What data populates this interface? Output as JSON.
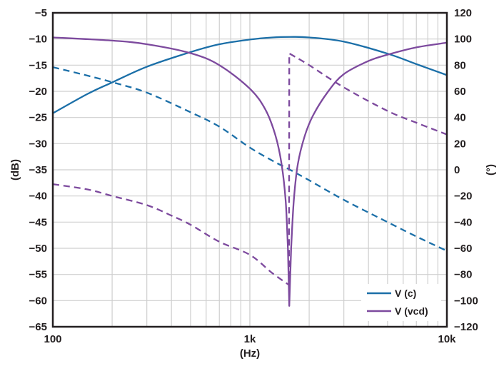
{
  "chart_data": {
    "type": "line",
    "xlabel": "(Hz)",
    "ylabel_left": "(dB)",
    "ylabel_right": "(°)",
    "xscale": "log",
    "xlim": [
      100,
      10000
    ],
    "ylim_left": [
      -65,
      -5
    ],
    "ylim_right": [
      -120,
      120
    ],
    "x_tick_labels": [
      "100",
      "1k",
      "10k"
    ],
    "x_tick_values": [
      100,
      1000,
      10000
    ],
    "y_left_ticks": [
      -5,
      -10,
      -15,
      -20,
      -25,
      -30,
      -35,
      -40,
      -45,
      -50,
      -55,
      -60,
      -65
    ],
    "y_right_ticks": [
      120,
      100,
      80,
      60,
      40,
      20,
      0,
      -20,
      -40,
      -60,
      -80,
      -100,
      -120
    ],
    "grid": true,
    "legend_placement": "bottom-right",
    "legend": [
      {
        "name": "V (c)",
        "color": "#1b6fa8"
      },
      {
        "name": "V (vcd)",
        "color": "#7d4a9e"
      }
    ],
    "series": [
      {
        "name": "V (c)",
        "quantity": "magnitude",
        "axis": "left",
        "style": "solid",
        "color": "#1b6fa8",
        "points": [
          [
            100,
            -24.2
          ],
          [
            150,
            -20.5
          ],
          [
            200,
            -18.3
          ],
          [
            300,
            -15.3
          ],
          [
            500,
            -12.5
          ],
          [
            700,
            -11
          ],
          [
            1000,
            -10.1
          ],
          [
            1300,
            -9.7
          ],
          [
            1600,
            -9.6
          ],
          [
            2000,
            -9.7
          ],
          [
            3000,
            -10.5
          ],
          [
            5000,
            -12.8
          ],
          [
            7000,
            -14.8
          ],
          [
            10000,
            -16.9
          ]
        ]
      },
      {
        "name": "V (c)",
        "quantity": "phase",
        "axis": "right",
        "style": "dashed",
        "color": "#1b6fa8",
        "points": [
          [
            100,
            78.5
          ],
          [
            150,
            72
          ],
          [
            200,
            67
          ],
          [
            300,
            59
          ],
          [
            500,
            44
          ],
          [
            700,
            33
          ],
          [
            1000,
            17
          ],
          [
            1300,
            7
          ],
          [
            1600,
            0
          ],
          [
            2000,
            -8
          ],
          [
            3000,
            -23
          ],
          [
            5000,
            -40
          ],
          [
            7000,
            -51
          ],
          [
            10000,
            -62
          ]
        ]
      },
      {
        "name": "V (vcd)",
        "quantity": "magnitude",
        "axis": "left",
        "style": "solid",
        "color": "#7d4a9e",
        "points": [
          [
            100,
            -9.7
          ],
          [
            200,
            -10.3
          ],
          [
            300,
            -11
          ],
          [
            500,
            -12.7
          ],
          [
            700,
            -15
          ],
          [
            1000,
            -19.5
          ],
          [
            1200,
            -23.5
          ],
          [
            1350,
            -28.5
          ],
          [
            1450,
            -34
          ],
          [
            1520,
            -41
          ],
          [
            1560,
            -50
          ],
          [
            1585,
            -61
          ],
          [
            1620,
            -50
          ],
          [
            1670,
            -41
          ],
          [
            1750,
            -34
          ],
          [
            1900,
            -28.5
          ],
          [
            2100,
            -24.5
          ],
          [
            2500,
            -20
          ],
          [
            3000,
            -16.7
          ],
          [
            4000,
            -14.2
          ],
          [
            5000,
            -13
          ],
          [
            7000,
            -11.6
          ],
          [
            10000,
            -10.7
          ]
        ]
      },
      {
        "name": "V (vcd)",
        "quantity": "phase",
        "axis": "right",
        "style": "dashed",
        "color": "#7d4a9e",
        "points": [
          [
            100,
            -11
          ],
          [
            150,
            -15
          ],
          [
            200,
            -20
          ],
          [
            300,
            -27
          ],
          [
            400,
            -35
          ],
          [
            500,
            -42
          ],
          [
            700,
            -55
          ],
          [
            1000,
            -65
          ],
          [
            1300,
            -79
          ],
          [
            1580,
            -88
          ],
          [
            1585,
            89
          ],
          [
            2000,
            80
          ],
          [
            3000,
            63
          ],
          [
            5000,
            45
          ],
          [
            7000,
            36
          ],
          [
            10000,
            27
          ]
        ]
      }
    ]
  }
}
